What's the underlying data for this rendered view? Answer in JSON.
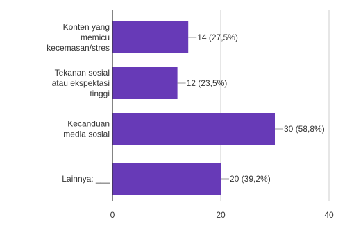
{
  "chart_data": {
    "type": "bar",
    "orientation": "horizontal",
    "categories": [
      [
        "Konten yang",
        "memicu",
        "kecemasan/stres"
      ],
      [
        "Tekanan sosial",
        "atau ekspektasi",
        "tinggi"
      ],
      [
        "Kecanduan",
        "media sosial"
      ],
      [
        "Lainnya: ___"
      ]
    ],
    "values": [
      14,
      12,
      30,
      20
    ],
    "data_labels": [
      "14 (27,5%)",
      "12 (23,5%)",
      "30 (58,8%)",
      "20 (39,2%)"
    ],
    "x_ticks": [
      "0",
      "20",
      "40"
    ],
    "xlim": [
      0,
      40
    ],
    "grid": true,
    "colors": {
      "bar": "#673ab7",
      "grid": "#cccccc",
      "axis": "#333333",
      "leader": "#999999"
    }
  }
}
